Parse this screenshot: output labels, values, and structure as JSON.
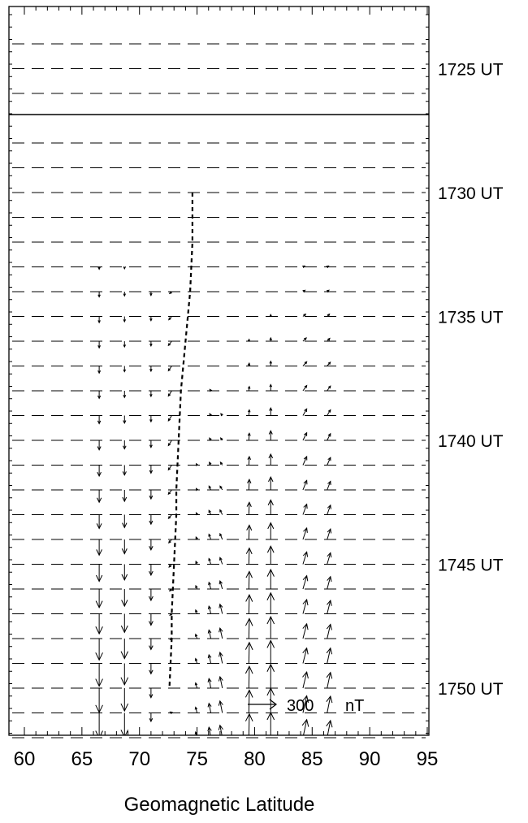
{
  "chart_data": {
    "type": "quiver",
    "xlabel": "Geomagnetic Latitude",
    "xlim": [
      60,
      95
    ],
    "x_ticks": [
      "60",
      "65",
      "70",
      "75",
      "80",
      "85",
      "90",
      "95"
    ],
    "time_labels": [
      {
        "label": "1725 UT",
        "row": 1
      },
      {
        "label": "1730 UT",
        "row": 6
      },
      {
        "label": "1735 UT",
        "row": 11
      },
      {
        "label": "1740 UT",
        "row": 16
      },
      {
        "label": "1745 UT",
        "row": 21
      },
      {
        "label": "1750 UT",
        "row": 26
      }
    ],
    "scale_arrow": {
      "value": "300",
      "unit": "nT"
    },
    "station_latitudes": [
      66.5,
      68.7,
      71.0,
      72.8,
      75.0,
      76.2,
      77.2,
      79.5,
      81.4,
      84.2,
      86.3
    ],
    "boundary_latitude": [
      74.6,
      74.6,
      74.6,
      74.5,
      74.4,
      74.2,
      74.0,
      73.8,
      73.6,
      73.5,
      73.4,
      73.3,
      73.2,
      73.2,
      73.1,
      73.0,
      72.9,
      72.8,
      72.8,
      72.7,
      72.6
    ],
    "series": [
      {
        "lat": 66.5,
        "dx": 0,
        "dy": [
          0,
          0,
          0,
          0,
          0,
          -25,
          -55,
          -65,
          -70,
          -75,
          -80,
          -85,
          -100,
          -115,
          -130,
          -145,
          -165,
          -180,
          -195,
          -210,
          -225,
          -240,
          -255,
          -265,
          -275,
          -290,
          -300,
          -310
        ]
      },
      {
        "lat": 68.7,
        "dx": 0,
        "dy": [
          0,
          0,
          0,
          0,
          0,
          -20,
          -45,
          -55,
          -60,
          -60,
          -70,
          -80,
          -90,
          -105,
          -120,
          -135,
          -150,
          -165,
          -180,
          -195,
          -210,
          -225,
          -240,
          -255,
          -265,
          -270,
          -275,
          -280
        ]
      },
      {
        "lat": 71.0,
        "dx": 0,
        "dy": [
          0,
          0,
          0,
          0,
          0,
          -15,
          -40,
          -45,
          -50,
          -55,
          -60,
          -65,
          -75,
          -85,
          -95,
          -100,
          -110,
          -115,
          -120,
          -120,
          -115,
          -110,
          -100,
          -90,
          -80,
          -80,
          -60,
          -35
        ]
      },
      {
        "lat": 72.8,
        "dx": -35,
        "dy": [
          0,
          0,
          0,
          0,
          0,
          0,
          -20,
          -35,
          -45,
          -50,
          -55,
          -55,
          -55,
          -50,
          -45,
          -40,
          -35,
          -30,
          -20,
          -15,
          -10,
          0,
          0,
          10,
          15,
          10,
          -10,
          0
        ]
      },
      {
        "lat": 75.0,
        "dx": -15,
        "dy": [
          0,
          0,
          0,
          0,
          0,
          0,
          0,
          0,
          5,
          5,
          10,
          10,
          10,
          15,
          15,
          20,
          25,
          30,
          35,
          40,
          45,
          50,
          55,
          60,
          60,
          60,
          60,
          35
        ]
      },
      {
        "lat": 76.2,
        "dx": -20,
        "dy": [
          0,
          0,
          0,
          0,
          0,
          0,
          5,
          5,
          5,
          10,
          15,
          20,
          25,
          30,
          40,
          45,
          55,
          60,
          70,
          80,
          90,
          90,
          100,
          100,
          110,
          120,
          110,
          90
        ]
      },
      {
        "lat": 77.2,
        "dx": -25,
        "dy": [
          0,
          0,
          0,
          0,
          0,
          0,
          0,
          0,
          0,
          5,
          10,
          20,
          25,
          30,
          40,
          50,
          60,
          70,
          85,
          100,
          110,
          115,
          120,
          125,
          130,
          125,
          115,
          80
        ]
      },
      {
        "lat": 79.5,
        "dx": 5,
        "dy": [
          0,
          0,
          0,
          0,
          0,
          0,
          5,
          10,
          20,
          30,
          45,
          60,
          75,
          90,
          110,
          130,
          150,
          170,
          185,
          200,
          210,
          220,
          230,
          240,
          250,
          255,
          255,
          250
        ]
      },
      {
        "lat": 81.4,
        "dx": 0,
        "dy": [
          0,
          0,
          0,
          0,
          0,
          5,
          10,
          20,
          35,
          50,
          65,
          80,
          100,
          115,
          135,
          155,
          175,
          190,
          205,
          220,
          230,
          240,
          250,
          260,
          265,
          270,
          275,
          280
        ]
      },
      {
        "lat": 84.2,
        "dx": 40,
        "dy": [
          0,
          0,
          0,
          0,
          0,
          10,
          15,
          25,
          35,
          45,
          55,
          70,
          80,
          90,
          100,
          110,
          120,
          130,
          140,
          150,
          155,
          160,
          170,
          180,
          190,
          195,
          200,
          200
        ]
      },
      {
        "lat": 86.3,
        "dx": 35,
        "dy": [
          0,
          0,
          0,
          0,
          0,
          10,
          15,
          25,
          30,
          40,
          50,
          60,
          70,
          80,
          90,
          100,
          110,
          120,
          130,
          140,
          150,
          160,
          165,
          175,
          180,
          185,
          190,
          190
        ]
      }
    ]
  }
}
